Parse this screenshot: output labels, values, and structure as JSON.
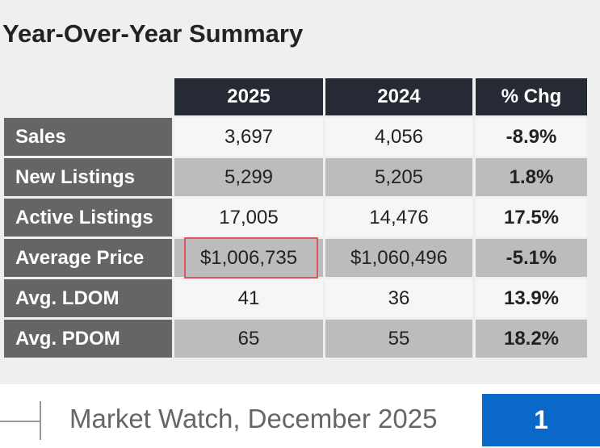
{
  "title": "Year-Over-Year Summary",
  "table": {
    "header": [
      "2025",
      "2024",
      "% Chg"
    ],
    "rows": [
      [
        "Sales",
        "3,697",
        "4,056",
        "-8.9%"
      ],
      [
        "New Listings",
        "5,299",
        "5,205",
        "1.8%"
      ],
      [
        "Active Listings",
        "17,005",
        "14,476",
        "17.5%"
      ],
      [
        "Average Price",
        "$1,006,735",
        "$1,060,496",
        "-5.1%"
      ],
      [
        "Avg. LDOM",
        "41",
        "36",
        "13.9%"
      ],
      [
        "Avg. PDOM",
        "65",
        "55",
        "18.2%"
      ]
    ]
  },
  "footer": {
    "text": "Market Watch, December 2025",
    "page": "1"
  }
}
